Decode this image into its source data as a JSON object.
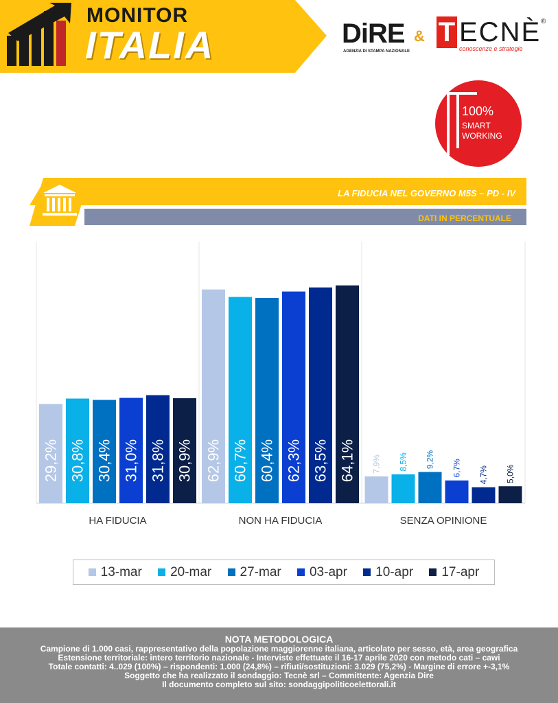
{
  "header": {
    "monitor": "MONITOR",
    "italia": "ITALIA",
    "dire_logo": "DiRE",
    "dire_sub": "AGENZIA DI STAMPA NAZIONALE",
    "ampersand": "&",
    "tecne_t": "T",
    "tecne_rest": "ECNÈ",
    "tecne_reg": "®",
    "tecne_sub": "conoscenze e strategie"
  },
  "badge": {
    "pct": "100%",
    "line1": "SMART",
    "line2": "WORKING"
  },
  "band": {
    "title": "LA FIDUCIA NEL GOVERNO M5S – PD - IV",
    "subtitle": "DATI IN PERCENTUALE",
    "icon": "government-building-icon"
  },
  "colors": {
    "accent": "#ffc20e",
    "band_gray": "#7f8ba8"
  },
  "chart_data": {
    "type": "bar",
    "categories": [
      "HA FIDUCIA",
      "NON HA FIDUCIA",
      "SENZA OPINIONE"
    ],
    "series": [
      {
        "name": "13-mar",
        "color": "#b4c7e7",
        "values": [
          29.2,
          62.9,
          7.9
        ],
        "labels": [
          "29,2%",
          "62,9%",
          "7,9%"
        ]
      },
      {
        "name": "20-mar",
        "color": "#0ab0e8",
        "values": [
          30.8,
          60.7,
          8.5
        ],
        "labels": [
          "30,8%",
          "60,7%",
          "8,5%"
        ]
      },
      {
        "name": "27-mar",
        "color": "#0070c0",
        "values": [
          30.4,
          60.4,
          9.2
        ],
        "labels": [
          "30,4%",
          "60,4%",
          "9,2%"
        ]
      },
      {
        "name": "03-apr",
        "color": "#0a3fd1",
        "values": [
          31.0,
          62.3,
          6.7
        ],
        "labels": [
          "31,0%",
          "62,3%",
          "6,7%"
        ]
      },
      {
        "name": "10-apr",
        "color": "#002a8f",
        "values": [
          31.8,
          63.5,
          4.7
        ],
        "labels": [
          "31,8%",
          "63,5%",
          "4,7%"
        ]
      },
      {
        "name": "17-apr",
        "color": "#0b1f47",
        "values": [
          30.9,
          64.1,
          5.0
        ],
        "labels": [
          "30,9%",
          "64,1%",
          "5,0%"
        ]
      }
    ],
    "ylim": [
      0,
      65
    ],
    "grid": false,
    "legend_position": "bottom"
  },
  "footer": {
    "title": "NOTA METODOLOGICA",
    "lines": [
      "Campione di 1.000 casi, rappresentativo della popolazione maggiorenne italiana, articolato per sesso, età, area geografica",
      "Estensione territoriale: intero territorio nazionale  - Interviste effettuate il 16-17 aprile 2020 con metodo cati – cawi",
      "Totale contatti: 4..029 (100%) – rispondenti: 1.000 (24,8%) – rifiuti/sostituzioni: 3.029 (75,2%) - Margine di errore +-3,1%",
      "Soggetto che ha realizzato il sondaggio: Tecnè srl – Committente: Agenzia Dire",
      "Il documento completo sul sito: sondaggipoliticoelettorali.it"
    ]
  }
}
